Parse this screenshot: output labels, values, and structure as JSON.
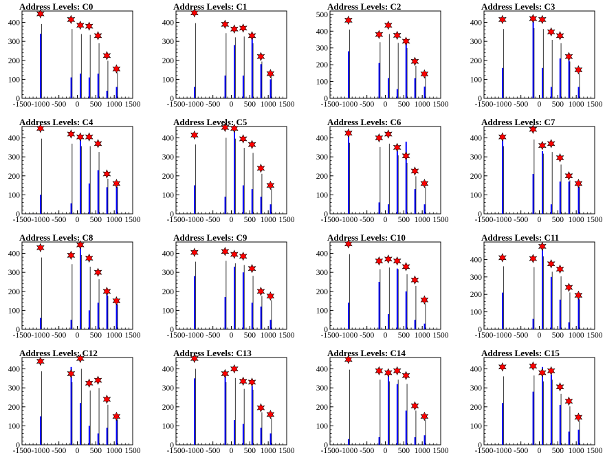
{
  "chart_data": [
    {
      "type": "bar",
      "title": "Address Levels: C0",
      "xlim": [
        -1500,
        1500
      ],
      "ylim": [
        0,
        460
      ],
      "xticks": [
        "-1500",
        "-1000",
        "-500",
        "0",
        "500",
        "1000",
        "1500"
      ],
      "yticks": [
        "0",
        "100",
        "200",
        "300",
        "400"
      ],
      "peaks": {
        "x": [
          -1000,
          -170,
          80,
          320,
          560,
          800,
          1060
        ],
        "y": [
          445,
          415,
          385,
          380,
          330,
          225,
          155
        ]
      },
      "bars": {
        "x": [
          -1000,
          -170,
          80,
          320,
          560,
          800,
          1060
        ],
        "y": [
          340,
          110,
          130,
          110,
          130,
          40,
          60
        ]
      }
    },
    {
      "type": "bar",
      "title": "Address Levels: C1",
      "xlim": [
        -1500,
        1500
      ],
      "ylim": [
        0,
        460
      ],
      "xticks": [
        "-1500",
        "-1000",
        "-500",
        "0",
        "500",
        "1000",
        "1500"
      ],
      "yticks": [
        "0",
        "100",
        "200",
        "300",
        "400"
      ],
      "peaks": {
        "x": [
          -1000,
          -170,
          80,
          320,
          560,
          800,
          1060
        ],
        "y": [
          450,
          390,
          365,
          370,
          330,
          220,
          130
        ]
      },
      "bars": {
        "x": [
          -1000,
          -170,
          80,
          320,
          560,
          800,
          1060
        ],
        "y": [
          60,
          120,
          280,
          120,
          330,
          180,
          100
        ]
      }
    },
    {
      "type": "bar",
      "title": "Address Levels: C2",
      "xlim": [
        -1500,
        1500
      ],
      "ylim": [
        0,
        520
      ],
      "xticks": [
        "-1500",
        "-1000",
        "-500",
        "0",
        "500",
        "1000",
        "1500"
      ],
      "yticks": [
        "0",
        "100",
        "200",
        "300",
        "400",
        "500"
      ],
      "peaks": {
        "x": [
          -1000,
          -170,
          80,
          320,
          560,
          800,
          1060
        ],
        "y": [
          465,
          380,
          435,
          375,
          340,
          220,
          145
        ]
      },
      "bars": {
        "x": [
          -1000,
          -170,
          80,
          320,
          560,
          800,
          1060
        ],
        "y": [
          280,
          210,
          120,
          55,
          340,
          120,
          70
        ]
      }
    },
    {
      "type": "bar",
      "title": "Address Levels: C3",
      "xlim": [
        -1500,
        1500
      ],
      "ylim": [
        0,
        460
      ],
      "xticks": [
        "-1500",
        "-1000",
        "-500",
        "0",
        "500",
        "1000",
        "1500"
      ],
      "yticks": [
        "0",
        "100",
        "200",
        "300",
        "400"
      ],
      "peaks": {
        "x": [
          -1000,
          -170,
          80,
          320,
          560,
          800,
          1060
        ],
        "y": [
          415,
          420,
          415,
          350,
          330,
          220,
          150
        ]
      },
      "bars": {
        "x": [
          -1000,
          -170,
          80,
          320,
          560,
          800,
          1060
        ],
        "y": [
          160,
          420,
          160,
          60,
          210,
          200,
          60
        ]
      }
    },
    {
      "type": "bar",
      "title": "Address Levels: C4",
      "xlim": [
        -1500,
        1500
      ],
      "ylim": [
        0,
        460
      ],
      "xticks": [
        "-1500",
        "-1000",
        "-500",
        "0",
        "500",
        "1000",
        "1500"
      ],
      "yticks": [
        "0",
        "100",
        "200",
        "300",
        "400"
      ],
      "peaks": {
        "x": [
          -1000,
          -170,
          80,
          320,
          560,
          800,
          1060
        ],
        "y": [
          450,
          420,
          405,
          405,
          370,
          210,
          160
        ]
      },
      "bars": {
        "x": [
          -1000,
          -170,
          80,
          320,
          560,
          800,
          1060
        ],
        "y": [
          100,
          55,
          400,
          160,
          230,
          140,
          160
        ]
      }
    },
    {
      "type": "bar",
      "title": "Address Levels: C5",
      "xlim": [
        -1500,
        1500
      ],
      "ylim": [
        0,
        460
      ],
      "xticks": [
        "-1500",
        "-1000",
        "-500",
        "0",
        "500",
        "1000",
        "1500"
      ],
      "yticks": [
        "0",
        "100",
        "200",
        "300",
        "400"
      ],
      "peaks": {
        "x": [
          -1000,
          -170,
          80,
          320,
          560,
          800,
          1060
        ],
        "y": [
          415,
          455,
          450,
          395,
          365,
          240,
          150
        ]
      },
      "bars": {
        "x": [
          -1000,
          -170,
          80,
          320,
          560,
          800,
          1060
        ],
        "y": [
          150,
          90,
          440,
          150,
          130,
          90,
          50
        ]
      }
    },
    {
      "type": "bar",
      "title": "Address Levels: C6",
      "xlim": [
        -1500,
        1500
      ],
      "ylim": [
        0,
        460
      ],
      "xticks": [
        "-1500",
        "-1000",
        "-500",
        "0",
        "500",
        "1000",
        "1500"
      ],
      "yticks": [
        "0",
        "100",
        "200",
        "300",
        "400"
      ],
      "peaks": {
        "x": [
          -1000,
          -170,
          80,
          320,
          560,
          800,
          1060
        ],
        "y": [
          425,
          400,
          420,
          350,
          305,
          225,
          160
        ]
      },
      "bars": {
        "x": [
          -1000,
          -170,
          80,
          320,
          560,
          800,
          1060
        ],
        "y": [
          420,
          60,
          50,
          330,
          380,
          130,
          50
        ]
      }
    },
    {
      "type": "bar",
      "title": "Address Levels: C7",
      "xlim": [
        -1500,
        1500
      ],
      "ylim": [
        0,
        460
      ],
      "xticks": [
        "-1500",
        "-1000",
        "-500",
        "0",
        "500",
        "1000",
        "1500"
      ],
      "yticks": [
        "0",
        "100",
        "200",
        "300",
        "400"
      ],
      "peaks": {
        "x": [
          -1000,
          -170,
          80,
          320,
          560,
          800,
          1060
        ],
        "y": [
          405,
          445,
          360,
          370,
          295,
          200,
          160
        ]
      },
      "bars": {
        "x": [
          -1000,
          -170,
          80,
          320,
          560,
          800,
          1060
        ],
        "y": [
          400,
          210,
          330,
          50,
          170,
          170,
          160
        ]
      }
    },
    {
      "type": "bar",
      "title": "Address Levels: C8",
      "xlim": [
        -1500,
        1500
      ],
      "ylim": [
        0,
        460
      ],
      "xticks": [
        "-1500",
        "-1000",
        "-500",
        "0",
        "500",
        "1000",
        "1500"
      ],
      "yticks": [
        "0",
        "100",
        "200",
        "300",
        "400"
      ],
      "peaks": {
        "x": [
          -1000,
          -170,
          80,
          320,
          560,
          800,
          1060
        ],
        "y": [
          430,
          390,
          445,
          375,
          300,
          200,
          150
        ]
      },
      "bars": {
        "x": [
          -1000,
          -170,
          80,
          320,
          560,
          800,
          1060
        ],
        "y": [
          60,
          50,
          440,
          100,
          140,
          200,
          140
        ]
      }
    },
    {
      "type": "bar",
      "title": "Address Levels: C9",
      "xlim": [
        -1500,
        1500
      ],
      "ylim": [
        0,
        460
      ],
      "xticks": [
        "-1500",
        "-1000",
        "-500",
        "0",
        "500",
        "1000",
        "1500"
      ],
      "yticks": [
        "0",
        "100",
        "200",
        "300",
        "400"
      ],
      "peaks": {
        "x": [
          -1000,
          -170,
          80,
          320,
          560,
          800,
          1060
        ],
        "y": [
          405,
          410,
          395,
          385,
          320,
          200,
          175
        ]
      },
      "bars": {
        "x": [
          -1000,
          -170,
          80,
          320,
          560,
          800,
          1060
        ],
        "y": [
          280,
          170,
          330,
          300,
          140,
          120,
          50
        ]
      }
    },
    {
      "type": "bar",
      "title": "Address Levels: C10",
      "xlim": [
        -1500,
        1500
      ],
      "ylim": [
        0,
        460
      ],
      "xticks": [
        "-1500",
        "-1000",
        "-500",
        "0",
        "500",
        "1000",
        "1500"
      ],
      "yticks": [
        "0",
        "100",
        "200",
        "300",
        "400"
      ],
      "peaks": {
        "x": [
          -1000,
          -170,
          80,
          320,
          560,
          800,
          1060
        ],
        "y": [
          450,
          360,
          370,
          360,
          330,
          260,
          155
        ]
      },
      "bars": {
        "x": [
          -1000,
          -170,
          80,
          320,
          560,
          800,
          1060
        ],
        "y": [
          140,
          250,
          80,
          320,
          200,
          50,
          30
        ]
      }
    },
    {
      "type": "bar",
      "title": "Address Levels: C11",
      "xlim": [
        -1500,
        1500
      ],
      "ylim": [
        0,
        500
      ],
      "xticks": [
        "-1500",
        "-1000",
        "-500",
        "0",
        "500",
        "1000",
        "1500"
      ],
      "yticks": [
        "0",
        "100",
        "200",
        "300",
        "400"
      ],
      "peaks": {
        "x": [
          -1000,
          -170,
          80,
          320,
          560,
          800,
          1060
        ],
        "y": [
          410,
          405,
          475,
          375,
          345,
          240,
          195
        ]
      },
      "bars": {
        "x": [
          -1000,
          -170,
          80,
          320,
          560,
          800,
          1060
        ],
        "y": [
          210,
          60,
          470,
          300,
          170,
          40,
          190
        ]
      }
    },
    {
      "type": "bar",
      "title": "Address Levels: C12",
      "xlim": [
        -1500,
        1500
      ],
      "ylim": [
        0,
        460
      ],
      "xticks": [
        "-1500",
        "-1000",
        "-500",
        "0",
        "500",
        "1000",
        "1500"
      ],
      "yticks": [
        "0",
        "100",
        "200",
        "300",
        "400"
      ],
      "peaks": {
        "x": [
          -1000,
          -170,
          80,
          320,
          560,
          800,
          1060
        ],
        "y": [
          440,
          375,
          455,
          325,
          340,
          240,
          150
        ]
      },
      "bars": {
        "x": [
          -1000,
          -170,
          80,
          320,
          560,
          800,
          1060
        ],
        "y": [
          150,
          410,
          220,
          100,
          60,
          90,
          140
        ]
      }
    },
    {
      "type": "bar",
      "title": "Address Levels: C13",
      "xlim": [
        -1500,
        1500
      ],
      "ylim": [
        0,
        460
      ],
      "xticks": [
        "-1500",
        "-1000",
        "-500",
        "0",
        "500",
        "1000",
        "1500"
      ],
      "yticks": [
        "0",
        "100",
        "200",
        "300",
        "400"
      ],
      "peaks": {
        "x": [
          -1000,
          -170,
          80,
          320,
          560,
          800,
          1060
        ],
        "y": [
          455,
          375,
          400,
          335,
          330,
          195,
          160
        ]
      },
      "bars": {
        "x": [
          -1000,
          -170,
          80,
          320,
          560,
          800,
          1060
        ],
        "y": [
          350,
          370,
          130,
          110,
          310,
          90,
          60
        ]
      }
    },
    {
      "type": "bar",
      "title": "Address Levels: C14",
      "xlim": [
        -1500,
        1500
      ],
      "ylim": [
        0,
        460
      ],
      "xticks": [
        "-1500",
        "-1000",
        "-500",
        "0",
        "500",
        "1000",
        "1500"
      ],
      "yticks": [
        "0",
        "100",
        "200",
        "300",
        "400"
      ],
      "peaks": {
        "x": [
          -1000,
          -170,
          80,
          320,
          560,
          800,
          1060
        ],
        "y": [
          450,
          390,
          380,
          390,
          365,
          205,
          150
        ]
      },
      "bars": {
        "x": [
          -1000,
          -170,
          80,
          320,
          560,
          800,
          1060
        ],
        "y": [
          30,
          40,
          370,
          320,
          180,
          40,
          50
        ]
      }
    },
    {
      "type": "bar",
      "title": "Address Levels: C15",
      "xlim": [
        -1500,
        1500
      ],
      "ylim": [
        0,
        460
      ],
      "xticks": [
        "-1500",
        "-1000",
        "-500",
        "0",
        "500",
        "1000",
        "1500"
      ],
      "yticks": [
        "0",
        "100",
        "200",
        "300",
        "400"
      ],
      "peaks": {
        "x": [
          -1000,
          -170,
          80,
          320,
          560,
          800,
          1060
        ],
        "y": [
          410,
          415,
          380,
          390,
          305,
          230,
          145
        ]
      },
      "bars": {
        "x": [
          -1000,
          -170,
          80,
          320,
          560,
          800,
          1060
        ],
        "y": [
          220,
          280,
          410,
          370,
          210,
          70,
          80
        ]
      }
    }
  ],
  "colors": {
    "bar": "#0000ff",
    "marker": "#ff0000",
    "marker_outline": "#000000",
    "axis": "#000000",
    "background": "#ffffff"
  }
}
